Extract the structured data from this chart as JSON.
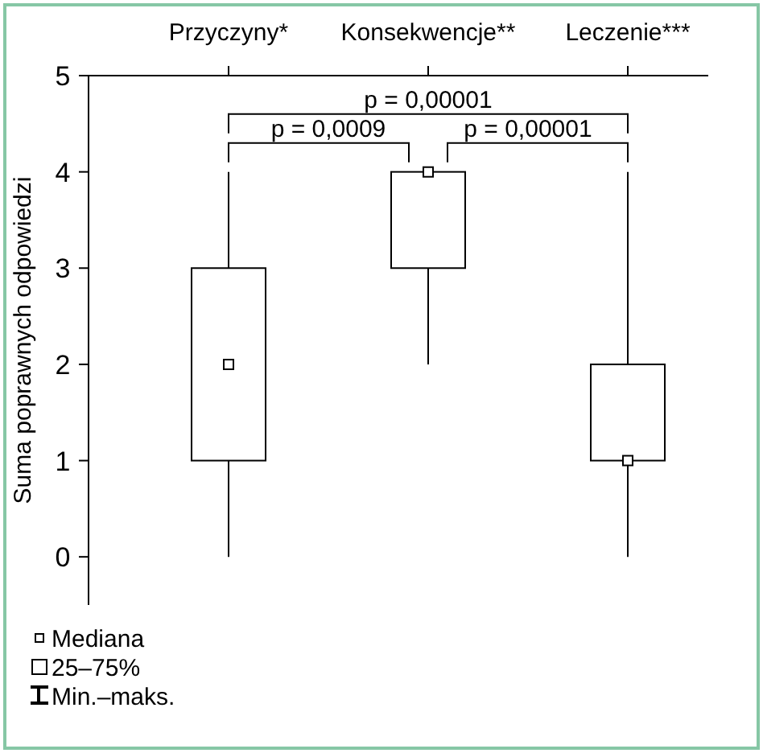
{
  "chart_data": {
    "type": "box",
    "ylabel": "Suma poprawnych odpowiedzi",
    "categories": [
      "Przyczyny*",
      "Konsekwencje**",
      "Leczenie***"
    ],
    "boxes": [
      {
        "low": 0,
        "q1": 1,
        "median": 2,
        "q3": 3,
        "high": 4
      },
      {
        "low": 2,
        "q1": 3,
        "median": 4,
        "q3": 4,
        "high": 4
      },
      {
        "low": 0,
        "q1": 1,
        "median": 1,
        "q3": 2,
        "high": 4
      }
    ],
    "color": "#ffffff",
    "ylim": [
      -0.5,
      5
    ],
    "yticks": [
      0,
      1,
      2,
      3,
      4,
      5
    ],
    "grid": false,
    "annotations": [
      "p = 0,0009",
      "p = 0,00001",
      "p = 0,00001",
      "Mediana",
      "25–75%",
      "Min.–maks."
    ]
  }
}
